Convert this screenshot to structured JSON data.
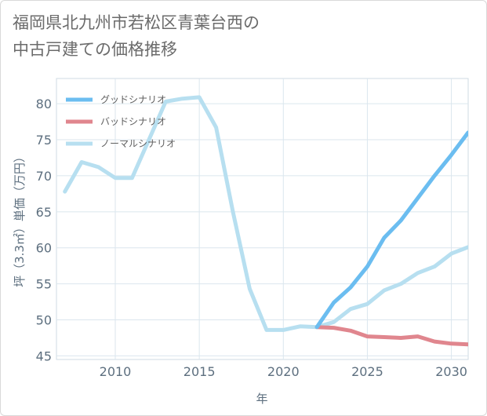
{
  "title_line1": "福岡県北九州市若松区青葉台西の",
  "title_line2": "中古戸建ての価格推移",
  "chart_data": {
    "type": "line",
    "xlabel": "年",
    "ylabel": "坪（3.3㎡）単価（万円）",
    "xlim": [
      2006.5,
      2031
    ],
    "ylim": [
      44.5,
      83.5
    ],
    "xticks": [
      2010,
      2015,
      2020,
      2025,
      2030
    ],
    "yticks": [
      45,
      50,
      55,
      60,
      65,
      70,
      75,
      80
    ],
    "grid": true,
    "legend_position": "top-left",
    "series": [
      {
        "name": "グッドシナリオ",
        "color": "#6bbdf0",
        "x": [
          2022,
          2023,
          2024,
          2025,
          2026,
          2027,
          2028,
          2029,
          2030,
          2031
        ],
        "y": [
          49.0,
          52.4,
          54.5,
          57.4,
          61.4,
          63.8,
          66.9,
          70.0,
          72.9,
          76.0
        ]
      },
      {
        "name": "バッドシナリオ",
        "color": "#e0868e",
        "x": [
          2022,
          2023,
          2024,
          2025,
          2026,
          2027,
          2028,
          2029,
          2030,
          2031
        ],
        "y": [
          49.0,
          48.9,
          48.5,
          47.7,
          47.6,
          47.5,
          47.7,
          47.0,
          46.7,
          46.6
        ]
      },
      {
        "name": "ノーマルシナリオ",
        "color": "#b7dff0",
        "x": [
          2007,
          2008,
          2009,
          2010,
          2011,
          2012,
          2013,
          2014,
          2015,
          2016,
          2017,
          2018,
          2019,
          2020,
          2021,
          2022,
          2023,
          2024,
          2025,
          2026,
          2027,
          2028,
          2029,
          2030,
          2031
        ],
        "y": [
          67.8,
          71.9,
          71.2,
          69.7,
          69.7,
          75.0,
          80.3,
          80.7,
          80.9,
          76.7,
          65.0,
          54.3,
          48.6,
          48.6,
          49.1,
          49.0,
          49.7,
          51.5,
          52.2,
          54.1,
          55.0,
          56.5,
          57.4,
          59.2,
          60.1
        ]
      }
    ]
  }
}
